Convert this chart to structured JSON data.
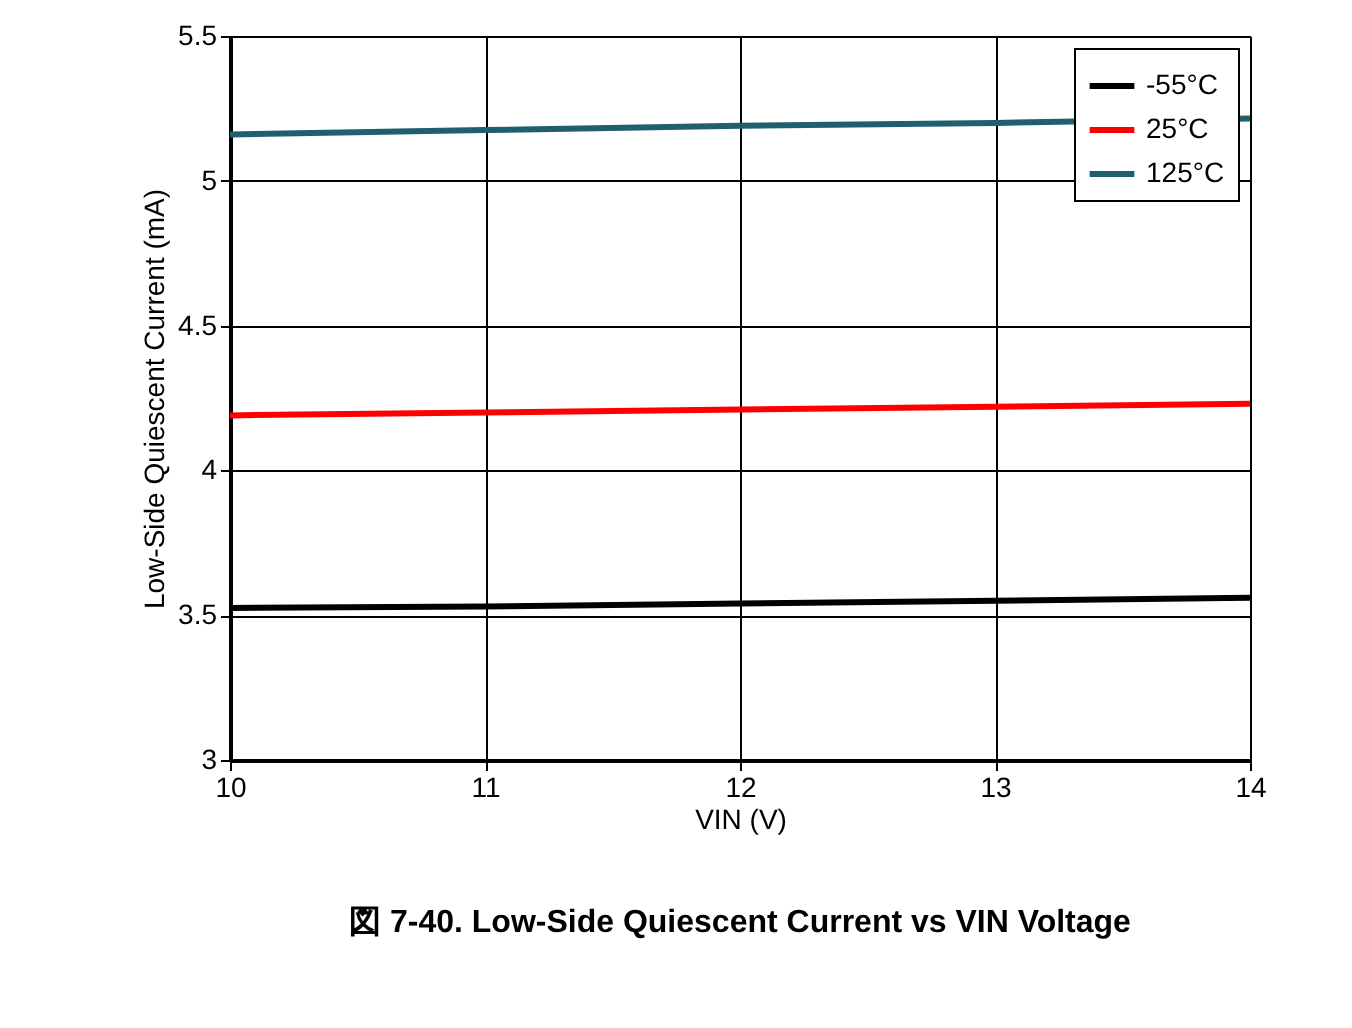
{
  "chart_data": {
    "type": "line",
    "xlabel": "VIN (V)",
    "ylabel": "Low-Side Quiescent Current (mA)",
    "x": [
      10,
      11,
      12,
      13,
      14
    ],
    "series": [
      {
        "name": "-55°C",
        "color": "#000000",
        "values": [
          3.525,
          3.53,
          3.54,
          3.55,
          3.56
        ]
      },
      {
        "name": "25°C",
        "color": "#ff0000",
        "values": [
          4.19,
          4.2,
          4.21,
          4.22,
          4.23
        ]
      },
      {
        "name": "125°C",
        "color": "#1f5f6e",
        "values": [
          5.16,
          5.175,
          5.19,
          5.2,
          5.215
        ]
      }
    ],
    "xlim": [
      10,
      14
    ],
    "xticks": [
      10,
      11,
      12,
      13,
      14
    ],
    "ylim": [
      3,
      5.5
    ],
    "yticks": [
      3,
      3.5,
      4,
      4.5,
      5,
      5.5
    ],
    "grid": true,
    "legend": "top right",
    "marker": "none",
    "line_style": "solid",
    "annotations": [
      "図 7-40. Low-Side Quiescent Current vs VIN Voltage"
    ]
  }
}
